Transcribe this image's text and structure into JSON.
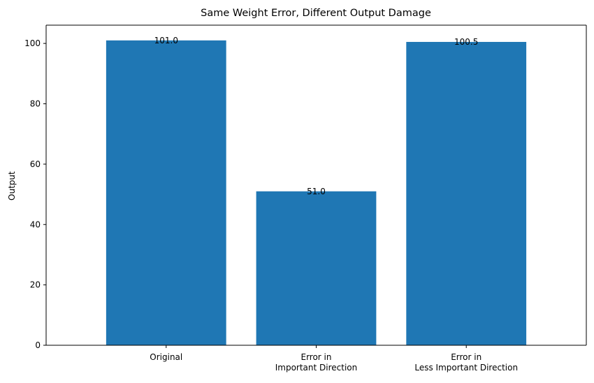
{
  "chart_data": {
    "type": "bar",
    "title": "Same Weight Error, Different Output Damage",
    "xlabel": "",
    "ylabel": "Output",
    "categories": [
      [
        "Original"
      ],
      [
        "Error in",
        "Important Direction"
      ],
      [
        "Error in",
        "Less Important Direction"
      ]
    ],
    "values": [
      101.0,
      51.0,
      100.5
    ],
    "data_labels": [
      "101.0",
      "51.0",
      "100.5"
    ],
    "ylim": [
      0,
      106.05
    ],
    "yticks": [
      0,
      20,
      40,
      60,
      80,
      100
    ],
    "grid": false,
    "legend": "none",
    "bar_color": "#1f77b4",
    "axis_color": "#000000"
  }
}
